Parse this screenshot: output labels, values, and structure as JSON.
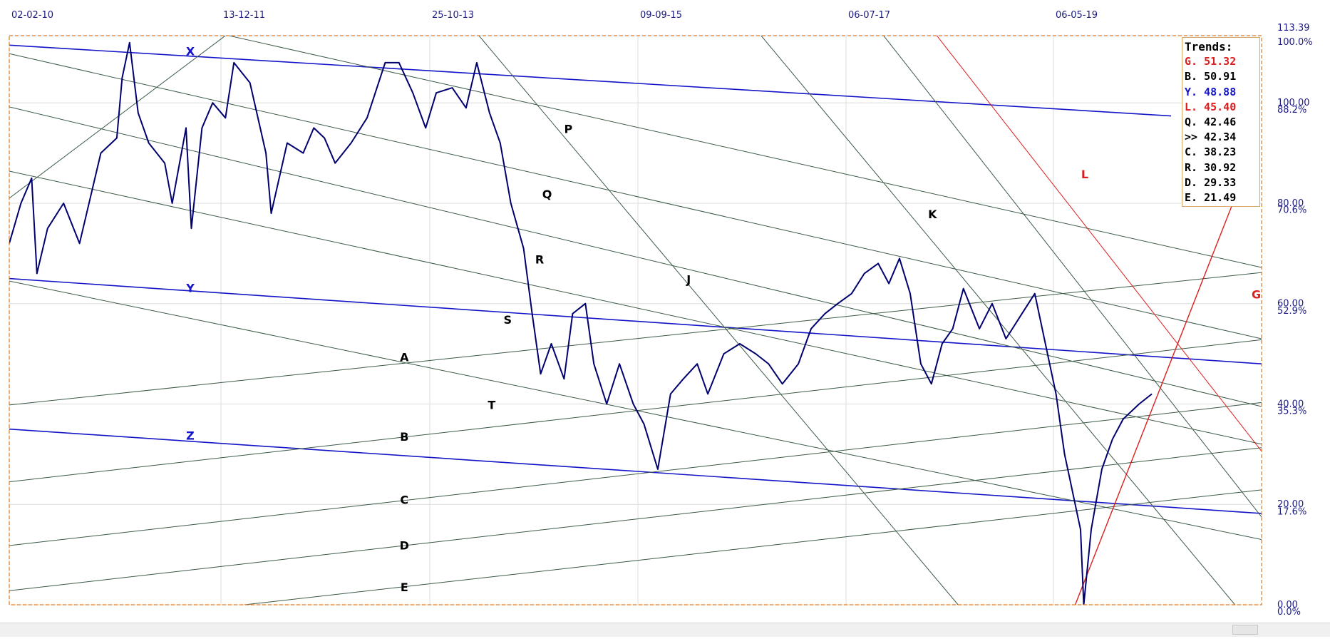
{
  "chart_data": {
    "type": "line",
    "title": "",
    "x_tick_labels": [
      "02-02-10",
      "13-12-11",
      "25-10-13",
      "09-09-15",
      "06-07-17",
      "06-05-19"
    ],
    "y_price_labels": [
      "113.39",
      "100.00",
      "80.00",
      "60.00",
      "40.00",
      "20.00",
      "0.00"
    ],
    "y_price_values": [
      113.39,
      100,
      80,
      60,
      40,
      20,
      0
    ],
    "y_pct_labels": [
      "100.0%",
      "88.2%",
      "70.6%",
      "52.9%",
      "35.3%",
      "17.6%",
      "0.0%"
    ],
    "y_pct_values": [
      100.0,
      88.2,
      70.6,
      52.9,
      35.3,
      17.6,
      0.0
    ],
    "ylim": [
      0,
      113.39
    ],
    "xlim_years": [
      2010.09,
      2021.85
    ],
    "grid": true,
    "price_series": {
      "color": "#00006e",
      "points": [
        [
          2010.09,
          72
        ],
        [
          2010.2,
          80
        ],
        [
          2010.3,
          85
        ],
        [
          2010.35,
          66
        ],
        [
          2010.45,
          75
        ],
        [
          2010.6,
          80
        ],
        [
          2010.75,
          72
        ],
        [
          2010.95,
          90
        ],
        [
          2011.1,
          93
        ],
        [
          2011.15,
          105
        ],
        [
          2011.22,
          112
        ],
        [
          2011.3,
          98
        ],
        [
          2011.4,
          92
        ],
        [
          2011.55,
          88
        ],
        [
          2011.62,
          80
        ],
        [
          2011.75,
          95
        ],
        [
          2011.8,
          75
        ],
        [
          2011.9,
          95
        ],
        [
          2012.0,
          100
        ],
        [
          2012.12,
          97
        ],
        [
          2012.2,
          108
        ],
        [
          2012.35,
          104
        ],
        [
          2012.5,
          90
        ],
        [
          2012.55,
          78
        ],
        [
          2012.7,
          92
        ],
        [
          2012.85,
          90
        ],
        [
          2012.95,
          95
        ],
        [
          2013.05,
          93
        ],
        [
          2013.15,
          88
        ],
        [
          2013.3,
          92
        ],
        [
          2013.45,
          97
        ],
        [
          2013.62,
          108
        ],
        [
          2013.75,
          108
        ],
        [
          2013.88,
          102
        ],
        [
          2014.0,
          95
        ],
        [
          2014.1,
          102
        ],
        [
          2014.25,
          103
        ],
        [
          2014.38,
          99
        ],
        [
          2014.48,
          108
        ],
        [
          2014.6,
          98
        ],
        [
          2014.7,
          92
        ],
        [
          2014.8,
          80
        ],
        [
          2014.92,
          71
        ],
        [
          2015.0,
          58
        ],
        [
          2015.08,
          46
        ],
        [
          2015.18,
          52
        ],
        [
          2015.3,
          45
        ],
        [
          2015.38,
          58
        ],
        [
          2015.5,
          60
        ],
        [
          2015.58,
          48
        ],
        [
          2015.7,
          40
        ],
        [
          2015.82,
          48
        ],
        [
          2015.95,
          40
        ],
        [
          2016.05,
          36
        ],
        [
          2016.18,
          27
        ],
        [
          2016.3,
          42
        ],
        [
          2016.42,
          45
        ],
        [
          2016.55,
          48
        ],
        [
          2016.65,
          42
        ],
        [
          2016.8,
          50
        ],
        [
          2016.95,
          52
        ],
        [
          2017.1,
          50
        ],
        [
          2017.22,
          48
        ],
        [
          2017.35,
          44
        ],
        [
          2017.5,
          48
        ],
        [
          2017.62,
          55
        ],
        [
          2017.75,
          58
        ],
        [
          2017.87,
          60
        ],
        [
          2018.0,
          62
        ],
        [
          2018.12,
          66
        ],
        [
          2018.25,
          68
        ],
        [
          2018.35,
          64
        ],
        [
          2018.45,
          69
        ],
        [
          2018.55,
          62
        ],
        [
          2018.65,
          48
        ],
        [
          2018.75,
          44
        ],
        [
          2018.85,
          52
        ],
        [
          2018.95,
          55
        ],
        [
          2019.05,
          63
        ],
        [
          2019.2,
          55
        ],
        [
          2019.32,
          60
        ],
        [
          2019.45,
          53
        ],
        [
          2019.6,
          58
        ],
        [
          2019.72,
          62
        ],
        [
          2019.82,
          52
        ],
        [
          2019.92,
          42
        ],
        [
          2020.0,
          30
        ],
        [
          2020.05,
          25
        ],
        [
          2020.1,
          20
        ],
        [
          2020.15,
          15
        ],
        [
          2020.18,
          0
        ],
        [
          2020.25,
          15
        ],
        [
          2020.35,
          27
        ],
        [
          2020.45,
          33
        ],
        [
          2020.55,
          37
        ],
        [
          2020.7,
          40
        ],
        [
          2020.82,
          42
        ]
      ]
    },
    "trendlines": [
      {
        "name": "X",
        "color": "#1414c8",
        "width": 1.6,
        "p1": [
          2010.09,
          111.5
        ],
        "p2": [
          2021.0,
          97.4
        ],
        "label_pos": [
          2011.79,
          109.5
        ]
      },
      {
        "name": "Y",
        "color": "#1414c8",
        "width": 1.6,
        "p1": [
          2010.09,
          65.0
        ],
        "p2": [
          2021.85,
          48.0
        ],
        "label_pos": [
          2011.79,
          62.3
        ]
      },
      {
        "name": "Z",
        "color": "#1414c8",
        "width": 1.6,
        "p1": [
          2010.09,
          35.0
        ],
        "p2": [
          2021.85,
          18.2
        ],
        "label_pos": [
          2011.79,
          32.9
        ]
      },
      {
        "name": "A",
        "color": "#3c5a46",
        "width": 1,
        "p1": [
          2010.09,
          39.8
        ],
        "p2": [
          2021.85,
          66.2
        ],
        "label_pos": [
          2013.8,
          48.5
        ]
      },
      {
        "name": "B",
        "color": "#3c5a46",
        "width": 1,
        "p1": [
          2010.09,
          24.5
        ],
        "p2": [
          2021.85,
          52.8
        ],
        "label_pos": [
          2013.8,
          32.7
        ]
      },
      {
        "name": "C",
        "color": "#3c5a46",
        "width": 1,
        "p1": [
          2010.09,
          11.8
        ],
        "p2": [
          2021.85,
          40.3
        ],
        "label_pos": [
          2013.8,
          20.1
        ]
      },
      {
        "name": "D",
        "color": "#3c5a46",
        "width": 1,
        "p1": [
          2010.09,
          2.8
        ],
        "p2": [
          2021.85,
          31.3
        ],
        "label_pos": [
          2013.8,
          11.0
        ]
      },
      {
        "name": "E",
        "color": "#3c5a46",
        "width": 1,
        "p1": [
          2012.3,
          0.0
        ],
        "p2": [
          2021.85,
          22.9
        ],
        "label_pos": [
          2013.8,
          2.7
        ]
      },
      {
        "name": "",
        "color": "#3c5a46",
        "width": 1,
        "p1": [
          2010.09,
          81.0
        ],
        "p2": [
          2012.12,
          113.4
        ]
      },
      {
        "name": "P",
        "color": "#3c5a46",
        "width": 1,
        "p1": [
          2010.09,
          109.8
        ],
        "p2": [
          2021.85,
          53.0
        ],
        "label_pos": [
          2015.34,
          94.0
        ]
      },
      {
        "name": "Q",
        "color": "#3c5a46",
        "width": 1,
        "p1": [
          2010.09,
          99.2
        ],
        "p2": [
          2021.85,
          39.5
        ],
        "label_pos": [
          2015.14,
          81.0
        ]
      },
      {
        "name": "S",
        "color": "#3c5a46",
        "width": 1,
        "p1": [
          2010.09,
          86.4
        ],
        "p2": [
          2021.85,
          32.0
        ],
        "label_pos": [
          2014.77,
          56.0
        ]
      },
      {
        "name": "",
        "color": "#3c5a46",
        "width": 1,
        "p1": [
          2012.15,
          113.4
        ],
        "p2": [
          2021.85,
          67.2
        ]
      },
      {
        "name": "T",
        "color": "#3c5a46",
        "width": 1,
        "p1": [
          2010.09,
          64.5
        ],
        "p2": [
          2021.85,
          13.0
        ],
        "label_pos": [
          2014.62,
          39.0
        ]
      },
      {
        "name": "R",
        "color": "#3c5a46",
        "width": 1,
        "p1": [
          2014.5,
          113.4
        ],
        "p2": [
          2019.0,
          0.0
        ],
        "label_pos": [
          2015.07,
          68.0
        ]
      },
      {
        "name": "J",
        "color": "#3c5a46",
        "width": 1,
        "p1": [
          2017.15,
          113.4
        ],
        "p2": [
          2021.6,
          0.0
        ],
        "label_pos": [
          2016.47,
          64.0
        ]
      },
      {
        "name": "K",
        "color": "#3c5a46",
        "width": 1,
        "p1": [
          2018.3,
          113.4
        ],
        "p2": [
          2021.85,
          17.5
        ],
        "label_pos": [
          2018.76,
          77.0
        ]
      },
      {
        "name": "L",
        "color": "#dc1e1e",
        "width": 1,
        "p1": [
          2018.8,
          113.4
        ],
        "p2": [
          2021.85,
          30.6
        ],
        "label_pos": [
          2020.19,
          85.0
        ]
      },
      {
        "name": "G",
        "color": "#dc1e1e",
        "width": 1.4,
        "p1": [
          2020.1,
          0.0
        ],
        "p2": [
          2021.58,
          80.0
        ],
        "label_pos": [
          2021.8,
          61.0
        ]
      }
    ],
    "annotation_letters_color_blue": [
      "X",
      "Y",
      "Z"
    ],
    "annotation_letters_color_red": [
      "L",
      "G"
    ],
    "legend": {
      "title": "Trends:",
      "placement": "top-right",
      "items": [
        {
          "label": "G. 51.32",
          "color": "#dc1e1e"
        },
        {
          "label": "B. 50.91",
          "color": "#000000"
        },
        {
          "label": "Y. 48.88",
          "color": "#1414c8"
        },
        {
          "label": "L. 45.40",
          "color": "#dc1e1e"
        },
        {
          "label": "Q. 42.46",
          "color": "#000000"
        },
        {
          "label": ">> 42.34",
          "color": "#000000"
        },
        {
          "label": "C. 38.23",
          "color": "#000000"
        },
        {
          "label": "R. 30.92",
          "color": "#000000"
        },
        {
          "label": "D. 29.33",
          "color": "#000000"
        },
        {
          "label": "E. 21.49",
          "color": "#000000"
        }
      ]
    },
    "colors": {
      "frame": "#e07a20",
      "grid": "#dcdcdc",
      "axis_text": "#1a1a80",
      "trend_gray": "#3c5a46"
    }
  }
}
